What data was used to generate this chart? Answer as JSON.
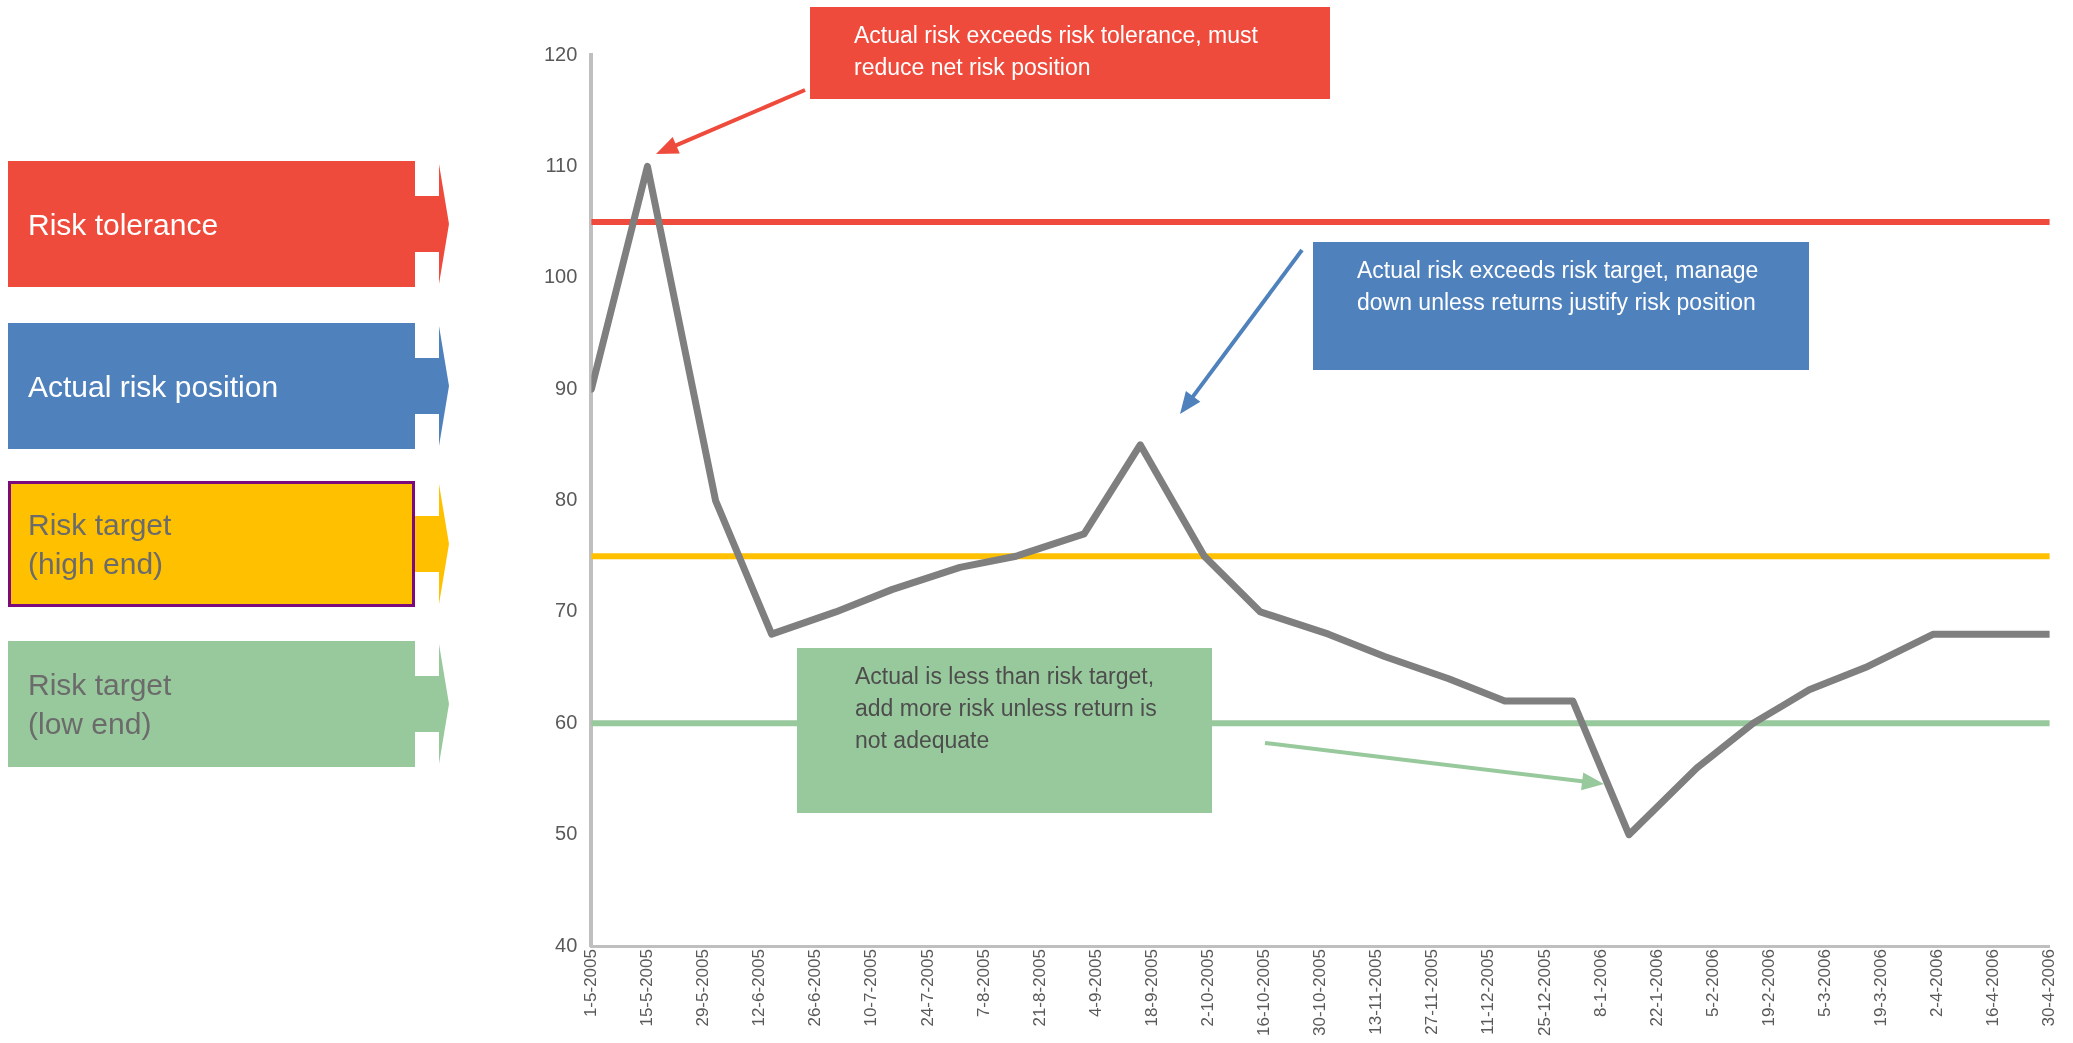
{
  "chart_data": {
    "type": "line",
    "x": [
      "2005-05-01",
      "2005-05-15",
      "2005-06-01",
      "2005-06-15",
      "2005-07-01",
      "2005-07-15",
      "2005-08-01",
      "2005-08-15",
      "2005-09-01",
      "2005-09-15",
      "2005-10-01",
      "2005-10-15",
      "2005-11-01",
      "2005-11-15",
      "2005-12-01",
      "2005-12-15",
      "2006-01-01",
      "2006-01-15",
      "2006-02-01",
      "2006-02-15",
      "2006-03-01",
      "2006-03-15",
      "2006-04-01",
      "2006-04-15",
      "2006-04-30"
    ],
    "series": [
      {
        "color": "#7f7f7f",
        "values": [
          90,
          110,
          80,
          68,
          70,
          72,
          74,
          75,
          77,
          85,
          75,
          70,
          68,
          66,
          64,
          62,
          62,
          50,
          56,
          60,
          63,
          65,
          68,
          68,
          68
        ]
      }
    ],
    "xlim": [
      "2005-05-01",
      "2006-04-30"
    ],
    "xticks": [
      {
        "value": "2005-05-01",
        "label": "1-5-2005"
      },
      {
        "value": "2005-05-15",
        "label": "15-5-2005"
      },
      {
        "value": "2005-05-29",
        "label": "29-5-2005"
      },
      {
        "value": "2005-06-12",
        "label": "12-6-2005"
      },
      {
        "value": "2005-06-26",
        "label": "26-6-2005"
      },
      {
        "value": "2005-07-10",
        "label": "10-7-2005"
      },
      {
        "value": "2005-07-24",
        "label": "24-7-2005"
      },
      {
        "value": "2005-08-07",
        "label": "7-8-2005"
      },
      {
        "value": "2005-08-21",
        "label": "21-8-2005"
      },
      {
        "value": "2005-09-04",
        "label": "4-9-2005"
      },
      {
        "value": "2005-09-18",
        "label": "18-9-2005"
      },
      {
        "value": "2005-10-02",
        "label": "2-10-2005"
      },
      {
        "value": "2005-10-16",
        "label": "16-10-2005"
      },
      {
        "value": "2005-10-30",
        "label": "30-10-2005"
      },
      {
        "value": "2005-11-13",
        "label": "13-11-2005"
      },
      {
        "value": "2005-11-27",
        "label": "27-11-2005"
      },
      {
        "value": "2005-12-11",
        "label": "11-12-2005"
      },
      {
        "value": "2005-12-25",
        "label": "25-12-2005"
      },
      {
        "value": "2006-01-08",
        "label": "8-1-2006"
      },
      {
        "value": "2006-01-22",
        "label": "22-1-2006"
      },
      {
        "value": "2006-02-05",
        "label": "5-2-2006"
      },
      {
        "value": "2006-02-19",
        "label": "19-2-2006"
      },
      {
        "value": "2006-03-05",
        "label": "5-3-2006"
      },
      {
        "value": "2006-03-19",
        "label": "19-3-2006"
      },
      {
        "value": "2006-04-02",
        "label": "2-4-2006"
      },
      {
        "value": "2006-04-16",
        "label": "16-4-2006"
      },
      {
        "value": "2006-04-30",
        "label": "30-4-2006"
      }
    ],
    "ylim": [
      40,
      120
    ],
    "yticks": [
      40,
      50,
      60,
      70,
      80,
      90,
      100,
      110,
      120
    ],
    "grid": false,
    "marker": "none",
    "line_style": "solid",
    "ref_lines": [
      {
        "axis": "y",
        "value": 105,
        "color": "#ef4b3c"
      },
      {
        "axis": "y",
        "value": 75,
        "color": "#ffc000"
      },
      {
        "axis": "y",
        "value": 60,
        "color": "#98c99c"
      }
    ],
    "annotations": [
      "Risk tolerance",
      "Actual risk position",
      "Risk target (high end)",
      "Risk target (low end)",
      "Actual risk exceeds risk tolerance, must reduce net risk position",
      "Actual risk exceeds risk target, manage down unless returns justify risk position",
      "Actual is less than risk target, add more risk unless return is not adequate"
    ]
  }
}
